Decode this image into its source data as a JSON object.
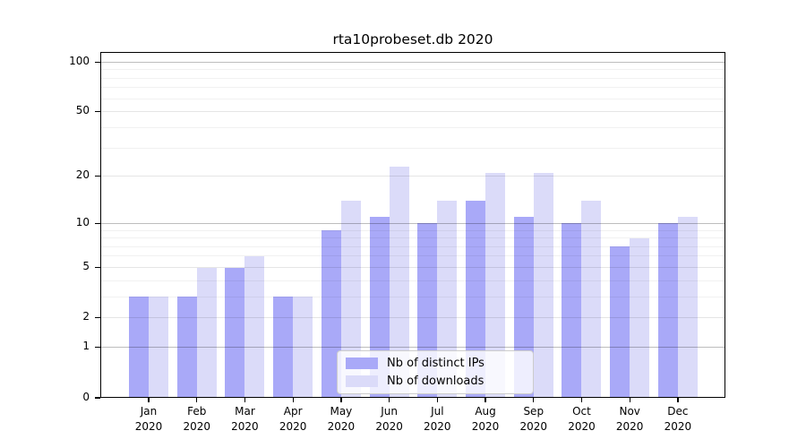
{
  "chart_data": {
    "type": "bar",
    "title": "rta10probeset.db 2020",
    "categories": [
      "Jan",
      "Feb",
      "Mar",
      "Apr",
      "May",
      "Jun",
      "Jul",
      "Aug",
      "Sep",
      "Oct",
      "Nov",
      "Dec"
    ],
    "year": "2020",
    "series": [
      {
        "name": "Nb of distinct IPs",
        "color": "#a9a9f8",
        "values": [
          3,
          3,
          5,
          3,
          9,
          11,
          10,
          14,
          11,
          10,
          7,
          10
        ]
      },
      {
        "name": "Nb of downloads",
        "color": "#dbdbf9",
        "values": [
          3,
          5,
          6,
          3,
          14,
          23,
          14,
          21,
          21,
          14,
          8,
          11
        ]
      }
    ],
    "xlabel": "",
    "ylabel": "",
    "yscale": "log1p",
    "ylim": [
      0,
      100
    ],
    "y_ticks": [
      0,
      1,
      2,
      5,
      10,
      20,
      50,
      100
    ],
    "grid": true,
    "grid_major": [
      1,
      10,
      100
    ],
    "grid_soft": [
      2,
      5,
      20,
      50
    ],
    "grid_minor": [
      3,
      4,
      6,
      7,
      8,
      9,
      30,
      40,
      60,
      70,
      80,
      90
    ],
    "legend_position": "lower-center-inside",
    "colors": {
      "background": "#ffffff",
      "spine": "#000000",
      "grid_major": "rgba(0,0,0,0.26)",
      "grid_soft": "rgba(0,0,0,0.10)",
      "grid_minor": "rgba(0,0,0,0.055)",
      "legend_border": "#cccccc",
      "legend_background": "rgba(255,255,255,0.8)"
    }
  }
}
